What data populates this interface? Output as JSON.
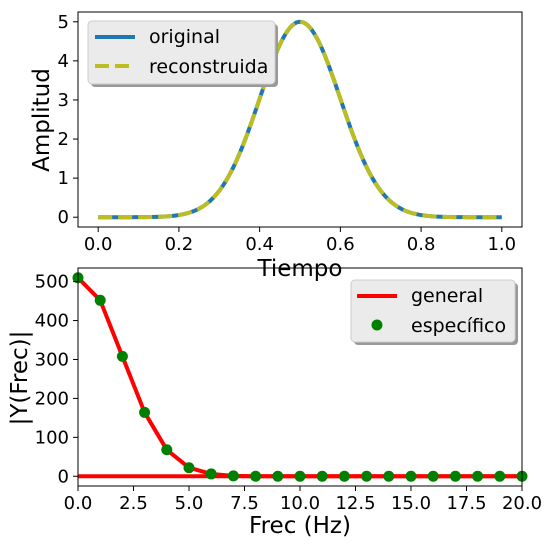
{
  "chart_data": [
    {
      "type": "line",
      "title": "",
      "xlabel": "Tiempo",
      "ylabel": "Amplitud",
      "xlim": [
        -0.05,
        1.05
      ],
      "ylim": [
        -0.25,
        5.25
      ],
      "xticks": [
        0.0,
        0.2,
        0.4,
        0.6,
        0.8,
        1.0
      ],
      "xtick_labels": [
        "0.0",
        "0.2",
        "0.4",
        "0.6",
        "0.8",
        "1.0"
      ],
      "yticks": [
        0,
        1,
        2,
        3,
        4,
        5
      ],
      "ytick_labels": [
        "0",
        "1",
        "2",
        "3",
        "4",
        "5"
      ],
      "grid": false,
      "legend_position": "top-left",
      "curve": {
        "shape": "gaussian",
        "peak_amplitude": 5,
        "peak_x": 0.5,
        "sigma": 0.1
      },
      "x": [
        0.0,
        0.05,
        0.1,
        0.15,
        0.2,
        0.25,
        0.3,
        0.35,
        0.4,
        0.45,
        0.5,
        0.55,
        0.6,
        0.65,
        0.7,
        0.75,
        0.8,
        0.85,
        0.9,
        0.95,
        1.0
      ],
      "series": [
        {
          "name": "original",
          "color": "#1f77b4",
          "style": "solid",
          "values": [
            0.0,
            0.0,
            0.0,
            0.01,
            0.06,
            0.22,
            0.68,
            1.62,
            3.03,
            4.41,
            5.0,
            4.41,
            3.03,
            1.62,
            0.68,
            0.22,
            0.06,
            0.01,
            0.0,
            0.0,
            0.0
          ]
        },
        {
          "name": "reconstruida",
          "color": "#bcbd22",
          "style": "dashed",
          "values": [
            0.0,
            0.0,
            0.0,
            0.01,
            0.06,
            0.22,
            0.68,
            1.62,
            3.03,
            4.41,
            5.0,
            4.41,
            3.03,
            1.62,
            0.68,
            0.22,
            0.06,
            0.01,
            0.0,
            0.0,
            0.0
          ]
        }
      ]
    },
    {
      "type": "line",
      "title": "",
      "xlabel": "Frec (Hz)",
      "ylabel": "|Y(Frec)|",
      "xlim": [
        0,
        20
      ],
      "ylim": [
        -25,
        535
      ],
      "xticks": [
        0,
        2.5,
        5,
        7.5,
        10,
        12.5,
        15,
        17.5,
        20
      ],
      "xtick_labels": [
        "0.0",
        "2.5",
        "5.0",
        "7.5",
        "10.0",
        "12.5",
        "15.0",
        "17.5",
        "20.0"
      ],
      "yticks": [
        0,
        100,
        200,
        300,
        400,
        500
      ],
      "ytick_labels": [
        "0",
        "100",
        "200",
        "300",
        "400",
        "500"
      ],
      "grid": false,
      "legend_position": "top-right",
      "series": [
        {
          "name": "general",
          "color": "#ff0000",
          "style": "solid",
          "x": [
            0,
            1,
            2,
            3,
            4,
            5,
            6,
            7,
            8,
            9,
            10,
            11,
            12,
            13,
            14,
            15,
            16,
            17,
            18,
            19,
            20
          ],
          "values": [
            510,
            452,
            308,
            164,
            68,
            22,
            6,
            1,
            0,
            0,
            0,
            0,
            0,
            0,
            0,
            0,
            0,
            0,
            0,
            0,
            0
          ],
          "baseline_value": 0
        },
        {
          "name": "específico",
          "color": "#008000",
          "style": "markers",
          "x": [
            0,
            1,
            2,
            3,
            4,
            5,
            6,
            7,
            8,
            9,
            10,
            11,
            12,
            13,
            14,
            15,
            16,
            17,
            18,
            19,
            20
          ],
          "values": [
            510,
            452,
            308,
            164,
            68,
            22,
            6,
            1,
            0,
            0,
            0,
            0,
            0,
            0,
            0,
            0,
            0,
            0,
            0,
            0,
            0
          ]
        }
      ]
    }
  ]
}
